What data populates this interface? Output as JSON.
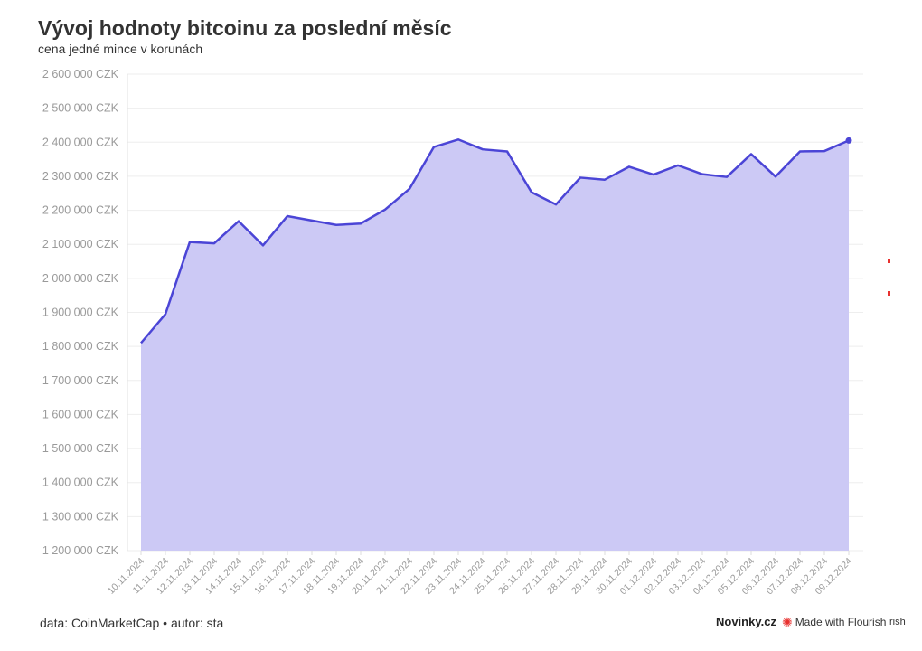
{
  "title": "Vývoj hodnoty bitcoinu za poslední měsíc",
  "subtitle": "cena jedné mince v korunách",
  "footer": {
    "source": "data: CoinMarketCap • autor: sta",
    "brand": "Novinky.cz",
    "made_with": "Made with Flourish",
    "clipped_text": "rish"
  },
  "colors": {
    "line": "#4b45d6",
    "area": "#c9c6f4",
    "grid": "#eeeeee",
    "tick_text": "#9a9a9a"
  },
  "chart_data": {
    "type": "area",
    "ylim": [
      1200000,
      2600000
    ],
    "yticks": [
      {
        "value": 2600000,
        "label": "2 600 000 CZK"
      },
      {
        "value": 2500000,
        "label": "2 500 000 CZK"
      },
      {
        "value": 2400000,
        "label": "2 400 000 CZK"
      },
      {
        "value": 2300000,
        "label": "2 300 000 CZK"
      },
      {
        "value": 2200000,
        "label": "2 200 000 CZK"
      },
      {
        "value": 2100000,
        "label": "2 100 000 CZK"
      },
      {
        "value": 2000000,
        "label": "2 000 000 CZK"
      },
      {
        "value": 1900000,
        "label": "1 900 000 CZK"
      },
      {
        "value": 1800000,
        "label": "1 800 000 CZK"
      },
      {
        "value": 1700000,
        "label": "1 700 000 CZK"
      },
      {
        "value": 1600000,
        "label": "1 600 000 CZK"
      },
      {
        "value": 1500000,
        "label": "1 500 000 CZK"
      },
      {
        "value": 1400000,
        "label": "1 400 000 CZK"
      },
      {
        "value": 1300000,
        "label": "1 300 000 CZK"
      },
      {
        "value": 1200000,
        "label": "1 200 000 CZK"
      }
    ],
    "categories": [
      "10.11.2024",
      "11.11.2024",
      "12.11.2024",
      "13.11.2024",
      "14.11.2024",
      "15.11.2024",
      "16.11.2024",
      "17.11.2024",
      "18.11.2024",
      "19.11.2024",
      "20.11.2024",
      "21.11.2024",
      "22.11.2024",
      "23.11.2024",
      "24.11.2024",
      "25.11.2024",
      "26.11.2024",
      "27.11.2024",
      "28.11.2024",
      "29.11.2024",
      "30.11.2024",
      "01.12.2024",
      "02.12.2024",
      "03.12.2024",
      "04.12.2024",
      "05.12.2024",
      "06.12.2024",
      "07.12.2024",
      "08.12.2024",
      "09.12.2024"
    ],
    "values": [
      1810000,
      1895000,
      2107000,
      2103000,
      2168000,
      2097000,
      2183000,
      2170000,
      2157000,
      2161000,
      2202000,
      2263000,
      2386000,
      2408000,
      2379000,
      2373000,
      2253000,
      2217000,
      2296000,
      2290000,
      2328000,
      2305000,
      2332000,
      2306000,
      2298000,
      2365000,
      2299000,
      2373000,
      2374000,
      2405000
    ],
    "grid": true,
    "legend": "none"
  }
}
